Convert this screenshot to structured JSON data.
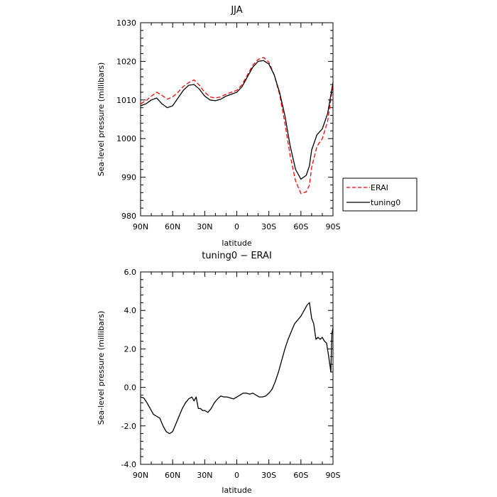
{
  "chart_data": [
    {
      "type": "line",
      "title": "JJA",
      "xlabel": "latitude",
      "ylabel": "Sea-level pressure (millibars)",
      "xlim": [
        -90,
        90
      ],
      "ylim": [
        980,
        1030
      ],
      "x_ticks": [
        "90N",
        "60N",
        "30N",
        "0",
        "30S",
        "60S",
        "90S"
      ],
      "y_ticks": [
        "980",
        "990",
        "1000",
        "1010",
        "1020",
        "1030"
      ],
      "grid": false,
      "legend_position": "right",
      "series": [
        {
          "name": "ERAI",
          "color": "#ff0000",
          "dash": "dashed",
          "x": [
            -90,
            -85,
            -80,
            -75,
            -70,
            -65,
            -60,
            -55,
            -50,
            -45,
            -40,
            -35,
            -30,
            -25,
            -20,
            -15,
            -10,
            -5,
            0,
            5,
            10,
            15,
            20,
            25,
            30,
            35,
            40,
            45,
            50,
            55,
            60,
            65,
            68,
            70,
            75,
            80,
            85,
            90
          ],
          "y": [
            1009,
            1009.8,
            1011,
            1012,
            1011.2,
            1010.2,
            1010.8,
            1012,
            1013.5,
            1014.5,
            1015.2,
            1013.8,
            1012,
            1010.8,
            1010.5,
            1010.8,
            1011.5,
            1012,
            1012.5,
            1014,
            1016.5,
            1019,
            1020.5,
            1021,
            1019.8,
            1016.5,
            1011.5,
            1004,
            995.5,
            989,
            985.8,
            986.2,
            988,
            992.5,
            998,
            1000,
            1004.5,
            1014
          ]
        },
        {
          "name": "tuning0",
          "color": "#000000",
          "dash": "solid",
          "x": [
            -90,
            -85,
            -80,
            -75,
            -70,
            -65,
            -60,
            -55,
            -50,
            -45,
            -40,
            -35,
            -30,
            -25,
            -20,
            -15,
            -10,
            -5,
            0,
            5,
            10,
            15,
            20,
            25,
            30,
            35,
            40,
            45,
            50,
            55,
            60,
            65,
            68,
            70,
            75,
            80,
            85,
            90
          ],
          "y": [
            1008.5,
            1009,
            1010,
            1010.5,
            1009,
            1008,
            1008.5,
            1010.5,
            1012.5,
            1013.8,
            1014,
            1012.8,
            1011,
            1010,
            1009.8,
            1010.2,
            1011,
            1011.5,
            1012,
            1013.5,
            1016,
            1018.5,
            1020,
            1020.2,
            1019.3,
            1016.5,
            1012,
            1006,
            998,
            992,
            989.5,
            990.5,
            993,
            997,
            1001,
            1002.5,
            1006.5,
            1014.5
          ]
        }
      ]
    },
    {
      "type": "line",
      "title": "tuning0 − ERAI",
      "xlabel": "latitude",
      "ylabel": "Sea-level pressure (millibars)",
      "xlim": [
        -90,
        90
      ],
      "ylim": [
        -4,
        6
      ],
      "x_ticks": [
        "90N",
        "60N",
        "30N",
        "0",
        "30S",
        "60S",
        "90S"
      ],
      "y_ticks": [
        "-4.0",
        "-2.0",
        "0.0",
        "2.0",
        "4.0",
        "6.0"
      ],
      "grid": false,
      "series": [
        {
          "color": "#000000",
          "dash": "solid",
          "x": [
            -90,
            -87,
            -84,
            -81,
            -78,
            -75,
            -72,
            -69,
            -66,
            -63,
            -60,
            -57,
            -54,
            -51,
            -48,
            -45,
            -42,
            -40,
            -38,
            -36,
            -34,
            -32,
            -30,
            -27,
            -24,
            -21,
            -18,
            -15,
            -12,
            -9,
            -6,
            -3,
            0,
            3,
            6,
            9,
            12,
            15,
            18,
            21,
            24,
            27,
            30,
            33,
            36,
            39,
            42,
            45,
            48,
            51,
            54,
            57,
            60,
            63,
            66,
            68,
            70,
            72,
            74,
            76,
            78,
            80,
            82,
            84,
            86,
            88,
            89,
            90
          ],
          "y": [
            -0.5,
            -0.55,
            -0.8,
            -1.1,
            -1.4,
            -1.5,
            -1.6,
            -2.0,
            -2.3,
            -2.4,
            -2.3,
            -1.9,
            -1.5,
            -1.1,
            -0.8,
            -0.6,
            -0.5,
            -0.7,
            -0.5,
            -1.1,
            -1.1,
            -1.2,
            -1.2,
            -1.3,
            -1.1,
            -0.8,
            -0.6,
            -0.45,
            -0.5,
            -0.5,
            -0.55,
            -0.6,
            -0.5,
            -0.4,
            -0.3,
            -0.3,
            -0.35,
            -0.3,
            -0.4,
            -0.5,
            -0.5,
            -0.45,
            -0.3,
            -0.1,
            0.3,
            0.8,
            1.4,
            2.0,
            2.5,
            2.9,
            3.3,
            3.5,
            3.7,
            4.0,
            4.3,
            4.4,
            3.6,
            3.3,
            2.5,
            2.6,
            2.5,
            2.6,
            2.4,
            2.3,
            1.6,
            0.8,
            2.8,
            3.1
          ]
        }
      ]
    }
  ]
}
